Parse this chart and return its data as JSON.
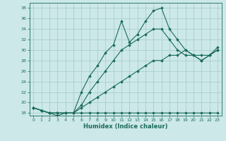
{
  "xlabel": "Humidex (Indice chaleur)",
  "xlim": [
    -0.5,
    23.5
  ],
  "ylim": [
    17.5,
    39
  ],
  "yticks": [
    18,
    20,
    22,
    24,
    26,
    28,
    30,
    32,
    34,
    36,
    38
  ],
  "xticks": [
    0,
    1,
    2,
    3,
    4,
    5,
    6,
    7,
    8,
    9,
    10,
    11,
    12,
    13,
    14,
    15,
    16,
    17,
    18,
    19,
    20,
    21,
    22,
    23
  ],
  "bg_color": "#cce8e8",
  "line_color": "#1a6b5a",
  "grid_color": "#aacece",
  "lines": [
    {
      "x": [
        0,
        1,
        2,
        3,
        4,
        5,
        6,
        7,
        8,
        9,
        10,
        11,
        12,
        13,
        14,
        15,
        16,
        17,
        18,
        19,
        20,
        21,
        22,
        23
      ],
      "y": [
        19,
        18.5,
        18,
        18,
        18,
        18,
        18,
        18,
        18,
        18,
        18,
        18,
        18,
        18,
        18,
        18,
        18,
        18,
        18,
        18,
        18,
        18,
        18,
        18
      ]
    },
    {
      "x": [
        0,
        1,
        2,
        3,
        4,
        5,
        6,
        7,
        8,
        9,
        10,
        11,
        12,
        13,
        14,
        15,
        16,
        17,
        18,
        19,
        20,
        21,
        22,
        23
      ],
      "y": [
        19,
        18.5,
        18,
        18,
        18,
        18,
        19,
        20,
        21,
        22,
        23,
        24,
        25,
        26,
        27,
        28,
        28,
        29,
        29,
        30,
        29,
        29,
        29,
        30
      ]
    },
    {
      "x": [
        0,
        1,
        2,
        3,
        4,
        5,
        6,
        7,
        8,
        9,
        10,
        11,
        12,
        13,
        14,
        15,
        16,
        17,
        18,
        19,
        20,
        21,
        22,
        23
      ],
      "y": [
        19,
        18.5,
        18,
        18,
        18,
        18,
        19.5,
        22,
        24,
        26,
        28,
        30,
        31,
        32,
        33,
        34,
        34,
        32,
        30,
        29,
        29,
        28,
        29,
        30
      ]
    },
    {
      "x": [
        0,
        1,
        2,
        3,
        4,
        5,
        6,
        7,
        8,
        9,
        10,
        11,
        12,
        13,
        14,
        15,
        16,
        17,
        18,
        19,
        20,
        21,
        22,
        23
      ],
      "y": [
        19,
        18.5,
        18,
        17.5,
        18,
        18,
        22,
        25,
        27,
        29.5,
        31,
        35.5,
        31.5,
        33,
        35.5,
        37.5,
        38,
        34,
        32,
        30,
        29,
        28,
        29,
        30.5
      ]
    }
  ]
}
